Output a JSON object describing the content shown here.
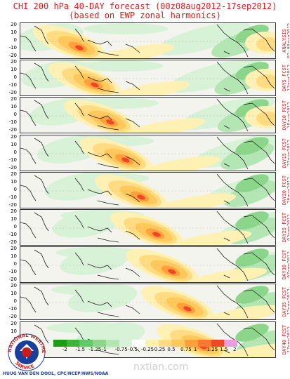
{
  "title": {
    "line1": "CHI 200 hPa 40-DAY forecast (00z08aug2012-17sep2012)",
    "line2": "(based on EWP zonal harmonics)"
  },
  "lat_ticks": [
    "20",
    "10",
    "0",
    "-10",
    "-20"
  ],
  "panels": [
    {
      "label1": "ANALYSIS",
      "label2": "02-08aug2012"
    },
    {
      "label1": "DAY5 FCST",
      "label2": "13aug2012"
    },
    {
      "label1": "DAY10 FCST",
      "label2": "18aug2012"
    },
    {
      "label1": "DAY15 FCST",
      "label2": "23aug2012"
    },
    {
      "label1": "DAY20 FCST",
      "label2": "28aug2012"
    },
    {
      "label1": "DAY25 FCST",
      "label2": "02sep2012"
    },
    {
      "label1": "DAY30 FCST",
      "label2": "07sep2012"
    },
    {
      "label1": "DAY35 FCST",
      "label2": "12sep2012"
    },
    {
      "label1": "DAY40 FCST",
      "label2": "17sep2012"
    }
  ],
  "colorbar": {
    "ticks": [
      "-2",
      "-1.5",
      "-1.25",
      "-1",
      "-0.75",
      "-0.5",
      "-0.25",
      "0.25",
      "0.5",
      "0.75",
      "1",
      "1.25",
      "1.5",
      "2"
    ],
    "colors": [
      "#1a9e1a",
      "#3cb43c",
      "#64c864",
      "#8cd68c",
      "#b4e6b4",
      "#d7f2d7",
      "#ffffff",
      "#fff0b4",
      "#ffdc82",
      "#ffc85a",
      "#ffa03c",
      "#ff7832",
      "#f04628",
      "#e6a0dc"
    ]
  },
  "logo": {
    "text": "NATIONAL WEATHER SERVICE"
  },
  "credit": "HUUG VAN DEN DOOL, CPC/NCEP/NWS/NOAA",
  "watermark": "nxtian.com"
}
